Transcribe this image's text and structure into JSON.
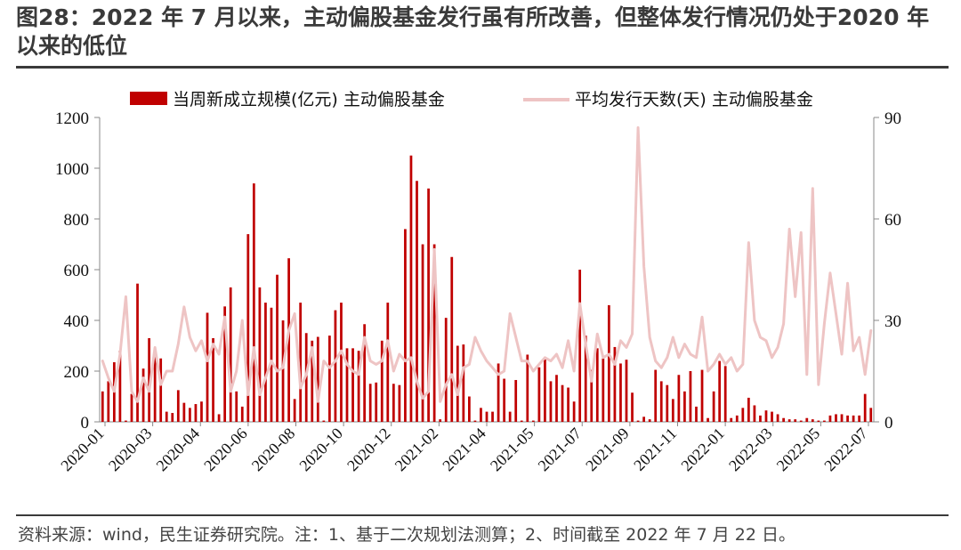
{
  "title": "图28：2022 年 7 月以来，主动偏股基金发行虽有所改善，但整体发行情况仍处于2020 年以来的低位",
  "source": "资料来源：wind，民生证券研究院。注：1、基于二次规划法测算；2、时间截至 2022 年 7 月 22 日。",
  "colors": {
    "bar": "#c00000",
    "line": "#eec4c4",
    "axis": "#888888",
    "text": "#111111"
  },
  "chart_data": {
    "type": "bar+line",
    "x_tick_labels": [
      "2020-01",
      "2020-03",
      "2020-04",
      "2020-06",
      "2020-08",
      "2020-10",
      "2020-12",
      "2021-02",
      "2021-04",
      "2021-05",
      "2021-07",
      "2021-09",
      "2021-11",
      "2022-01",
      "2022-03",
      "2022-05",
      "2022-07"
    ],
    "y_left": {
      "min": 0,
      "max": 1200,
      "ticks": [
        0,
        200,
        400,
        600,
        800,
        1000,
        1200
      ]
    },
    "y_right": {
      "min": 0,
      "max": 90,
      "ticks": [
        0,
        30,
        60,
        90
      ]
    },
    "legend": [
      "当周新成立规模(亿元) 主动偏股基金",
      "平均发行天数(天) 主动偏股基金"
    ],
    "series": [
      {
        "name": "当周新成立规模(亿元) 主动偏股基金",
        "axis": "left",
        "values": [
          120,
          160,
          235,
          280,
          5,
          110,
          545,
          210,
          330,
          290,
          250,
          40,
          35,
          125,
          75,
          55,
          70,
          80,
          430,
          330,
          30,
          455,
          530,
          120,
          60,
          740,
          940,
          530,
          470,
          450,
          580,
          400,
          645,
          90,
          470,
          350,
          320,
          335,
          5,
          340,
          440,
          470,
          290,
          290,
          280,
          385,
          150,
          155,
          320,
          470,
          150,
          145,
          760,
          1050,
          950,
          700,
          920,
          700,
          10,
          410,
          650,
          300,
          305,
          100,
          5,
          55,
          40,
          40,
          230,
          170,
          40,
          165,
          5,
          265,
          5,
          215,
          250,
          160,
          185,
          145,
          135,
          80,
          600,
          340,
          205,
          290,
          250,
          460,
          295,
          230,
          245,
          115,
          5,
          20,
          10,
          205,
          160,
          145,
          90,
          185,
          120,
          200,
          60,
          205,
          15,
          120,
          240,
          220,
          15,
          25,
          55,
          95,
          65,
          25,
          45,
          40,
          30,
          15,
          10,
          10,
          5,
          15,
          10,
          5,
          5,
          25,
          30,
          30,
          25,
          25,
          25,
          110,
          55
        ]
      },
      {
        "name": "平均发行天数(天) 主动偏股基金",
        "axis": "right",
        "values": [
          18,
          13,
          9,
          20,
          37,
          9,
          6,
          13,
          9,
          22,
          11,
          15,
          15,
          23,
          34,
          25,
          21,
          24,
          18,
          23,
          20,
          31,
          9,
          15,
          30,
          8,
          22,
          8,
          13,
          18,
          15,
          16,
          27,
          32,
          10,
          14,
          22,
          6,
          18,
          16,
          18,
          21,
          17,
          15,
          14,
          25,
          18,
          17,
          18,
          24,
          15,
          20,
          18,
          19,
          12,
          7,
          9,
          51,
          6,
          11,
          14,
          8,
          16,
          17,
          25,
          21,
          18,
          16,
          14,
          15,
          32,
          25,
          18,
          18,
          15,
          17,
          19,
          18,
          20,
          16,
          24,
          15,
          35,
          23,
          12,
          26,
          19,
          20,
          17,
          24,
          22,
          26,
          87,
          46,
          25,
          18,
          16,
          19,
          25,
          19,
          23,
          20,
          19,
          31,
          15,
          17,
          20,
          17,
          19,
          15,
          17,
          53,
          30,
          25,
          24,
          19,
          22,
          29,
          57,
          37,
          56,
          14,
          69,
          11,
          29,
          44,
          32,
          20,
          41,
          21,
          25,
          14,
          27
        ]
      }
    ]
  }
}
